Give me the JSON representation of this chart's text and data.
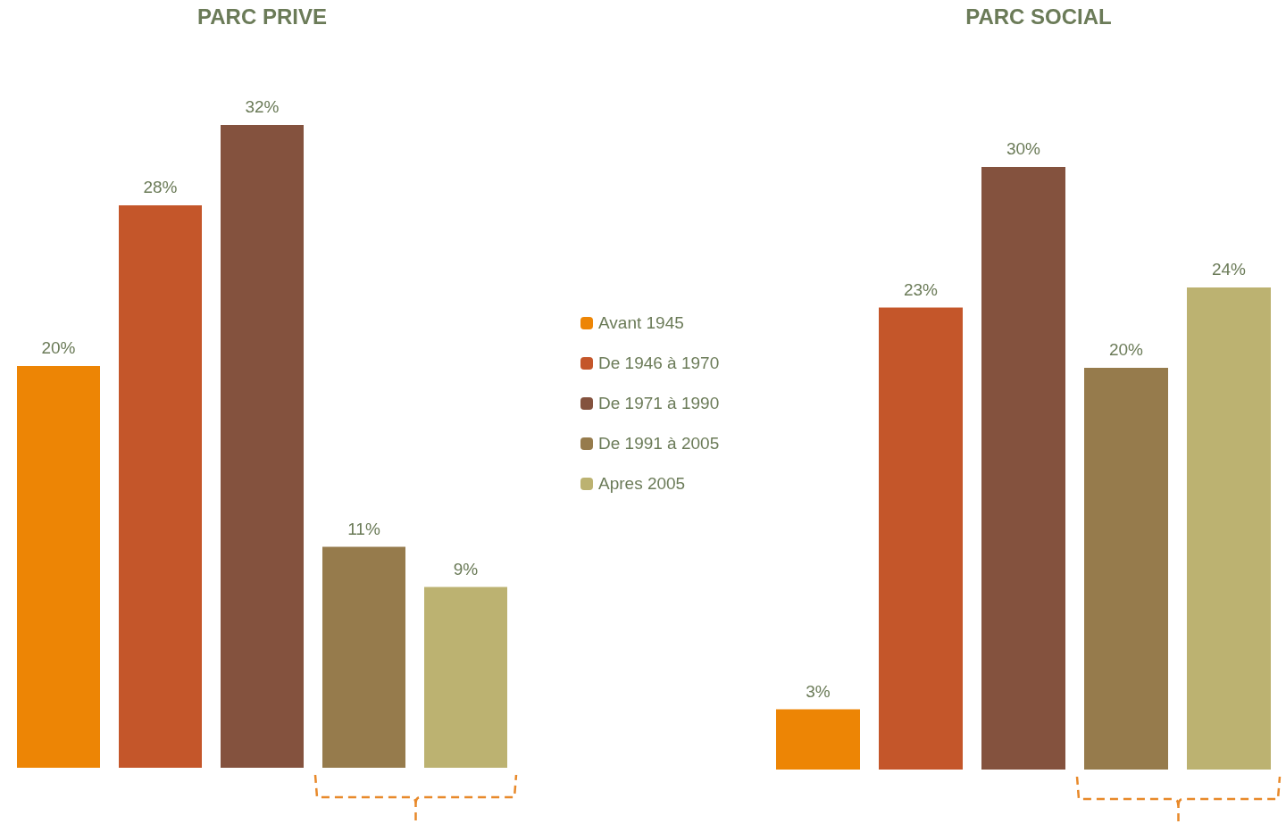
{
  "chart_data": [
    {
      "type": "bar",
      "title": "PARC PRIVE",
      "categories": [
        null
      ],
      "series": [
        {
          "name": "Avant 1945",
          "color": "#ed8505",
          "values": [
            20
          ],
          "value_labels": [
            "20%"
          ]
        },
        {
          "name": "De 1946 à 1970",
          "color": "#c4562a",
          "values": [
            28
          ],
          "value_labels": [
            "28%"
          ]
        },
        {
          "name": "De 1971 à 1990",
          "color": "#84523e",
          "values": [
            32
          ],
          "value_labels": [
            "32%"
          ]
        },
        {
          "name": "De 1991 à 2005",
          "color": "#967b4c",
          "values": [
            11
          ],
          "value_labels": [
            "11%"
          ]
        },
        {
          "name": "Apres 2005",
          "color": "#bcb271",
          "values": [
            9
          ],
          "value_labels": [
            "9%"
          ]
        }
      ],
      "legend": "right",
      "tick_labels": false
    },
    {
      "type": "bar",
      "title": "PARC SOCIAL",
      "categories": [
        null
      ],
      "series": [
        {
          "color": "#ed8505",
          "values": [
            3
          ],
          "value_labels": [
            "3%"
          ]
        },
        {
          "color": "#c4562a",
          "values": [
            23
          ],
          "value_labels": [
            "23%"
          ]
        },
        {
          "color": "#84523e",
          "values": [
            30
          ],
          "value_labels": [
            "30%"
          ]
        },
        {
          "color": "#967b4c",
          "values": [
            20
          ],
          "value_labels": [
            "20%"
          ]
        },
        {
          "color": "#bcb271",
          "values": [
            24
          ],
          "value_labels": [
            "24%"
          ]
        }
      ],
      "tick_labels": false
    }
  ]
}
